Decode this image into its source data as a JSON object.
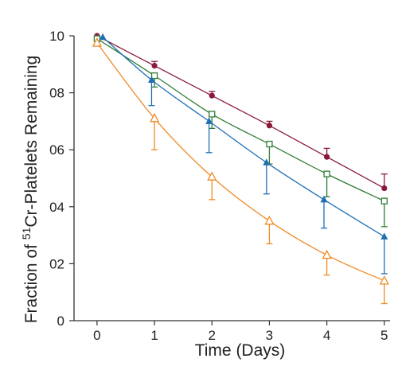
{
  "chart_data": {
    "type": "line",
    "xlabel": "Time (Days)",
    "ylabel_prefix": "Fraction of ",
    "ylabel_sup": "51",
    "ylabel_suffix": "Cr-Platelets Remaining",
    "xlim": [
      -0.4,
      5.1
    ],
    "ylim": [
      0,
      1.0
    ],
    "x_ticks": [
      0,
      1,
      2,
      3,
      4,
      5
    ],
    "x_tick_labels": [
      "0",
      "1",
      "2",
      "3",
      "4",
      "5"
    ],
    "y_ticks": [
      0,
      0.2,
      0.4,
      0.6,
      0.8,
      1.0
    ],
    "y_tick_labels": [
      "0",
      "02",
      "04",
      "06",
      "08",
      "10"
    ],
    "grid": false,
    "series": [
      {
        "color": "#8b1a3a",
        "marker": "filled-circle",
        "x": [
          0,
          1,
          2,
          3,
          4,
          5
        ],
        "y": [
          1.0,
          0.895,
          0.79,
          0.685,
          0.575,
          0.465
        ],
        "error_upper": [
          0,
          0.015,
          0.015,
          0.015,
          0.03,
          0.05
        ],
        "error_lower": [
          0,
          0,
          0,
          0,
          0,
          0
        ]
      },
      {
        "color": "#2e7d32",
        "marker": "open-square",
        "x": [
          0,
          1,
          2,
          3,
          4,
          5
        ],
        "y": [
          0.99,
          0.86,
          0.725,
          0.62,
          0.515,
          0.42
        ],
        "error_upper": [
          0,
          0,
          0,
          0,
          0,
          0
        ],
        "error_lower": [
          0,
          0.04,
          0.05,
          0.07,
          0.08,
          0.09
        ]
      },
      {
        "color": "#1f6fb5",
        "marker": "filled-triangle",
        "x": [
          0.1,
          0.95,
          1.95,
          2.95,
          3.95,
          5
        ],
        "y": [
          0.995,
          0.845,
          0.7,
          0.555,
          0.425,
          0.295
        ],
        "error_upper": [
          0,
          0,
          0,
          0,
          0,
          0
        ],
        "error_lower": [
          0,
          0.09,
          0.11,
          0.11,
          0.1,
          0.13
        ]
      },
      {
        "color": "#f08a24",
        "marker": "open-triangle",
        "x": [
          0,
          1,
          2,
          3,
          4,
          5
        ],
        "y": [
          0.975,
          0.71,
          0.505,
          0.35,
          0.23,
          0.14
        ],
        "error_upper": [
          0,
          0,
          0,
          0,
          0,
          0
        ],
        "error_lower": [
          0,
          0.11,
          0.08,
          0.08,
          0.07,
          0.08
        ]
      }
    ]
  }
}
